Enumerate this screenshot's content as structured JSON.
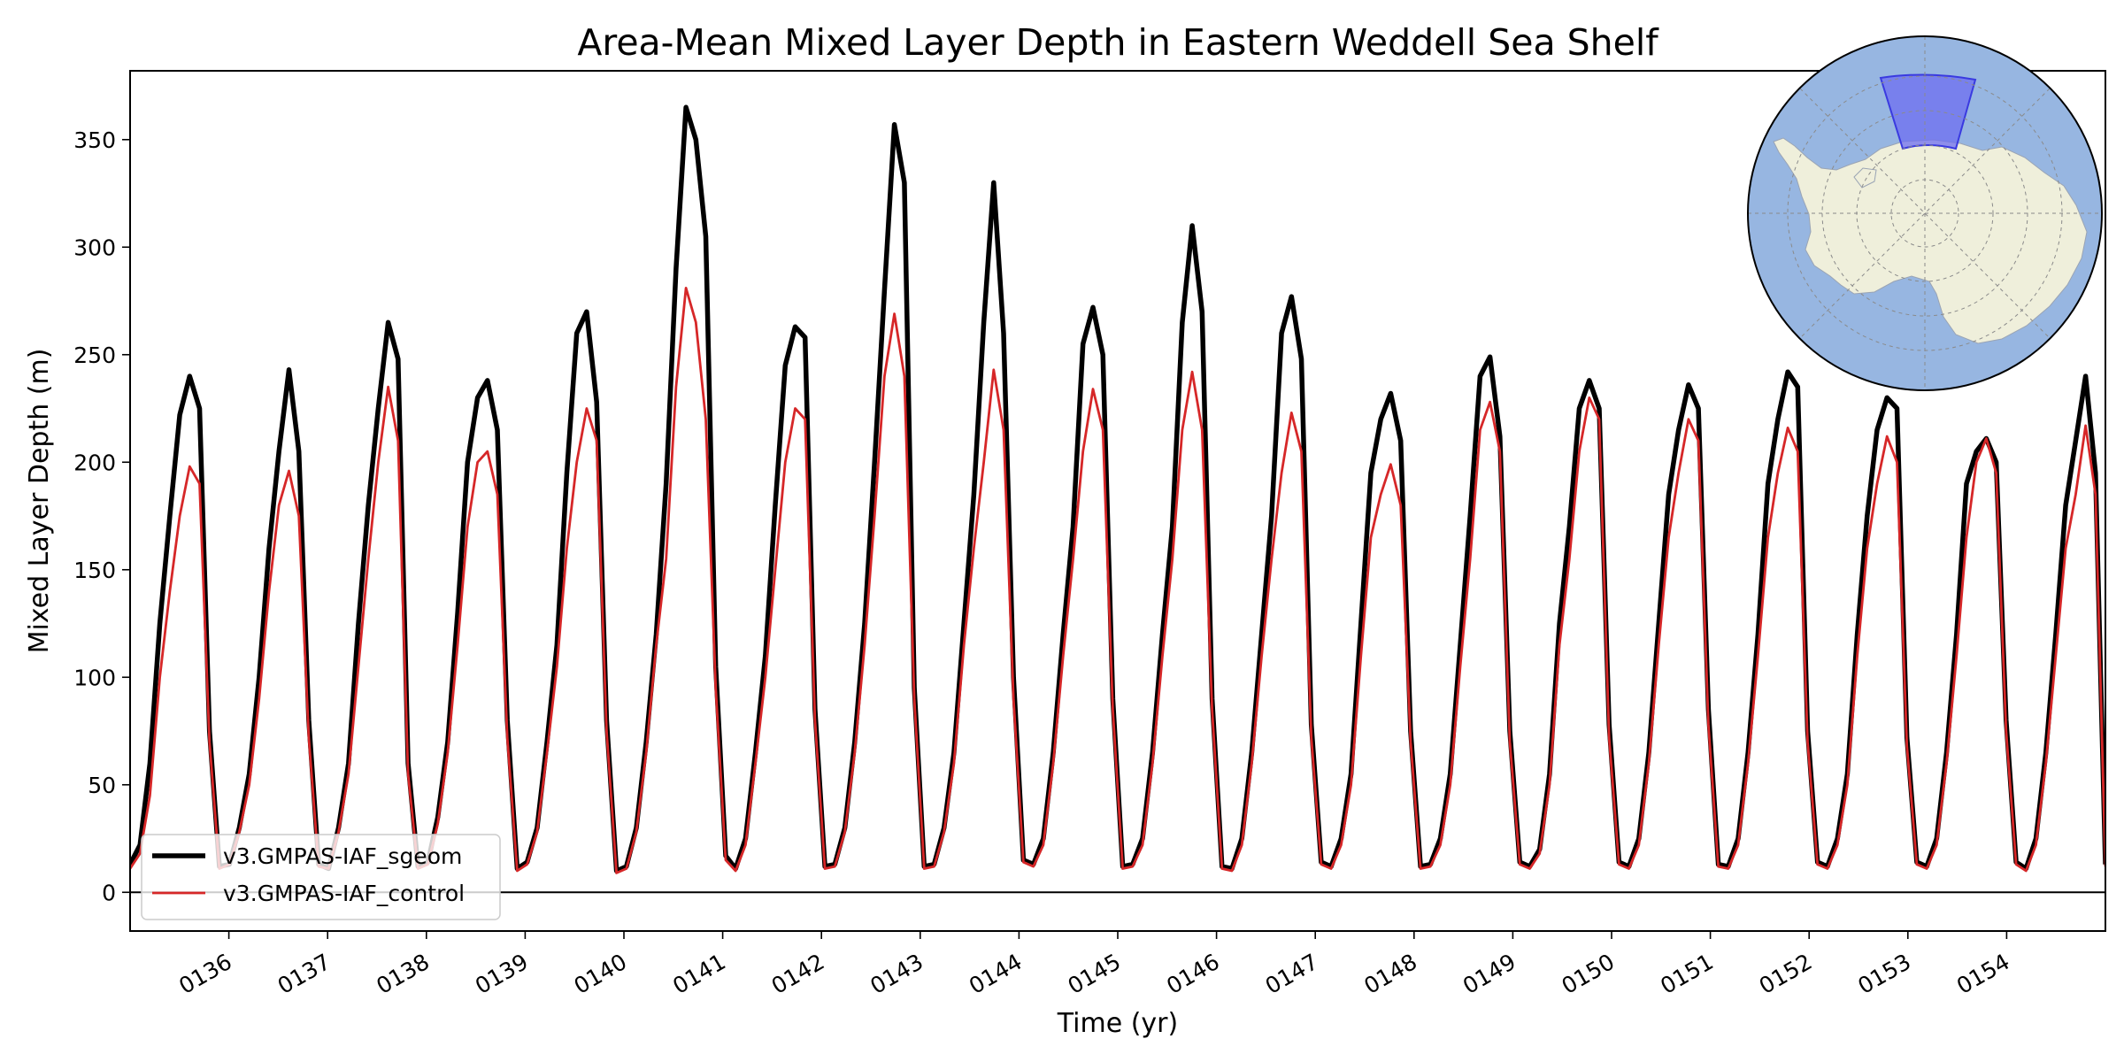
{
  "chart_data": {
    "type": "line",
    "title": "Area-Mean Mixed Layer Depth in Eastern Weddell Sea Shelf",
    "xlabel": "Time (yr)",
    "ylabel": "Mixed Layer Depth (m)",
    "xlim": [
      135.0,
      155.0
    ],
    "ylim": [
      -18,
      382
    ],
    "x_ticks": [
      136,
      137,
      138,
      139,
      140,
      141,
      142,
      143,
      144,
      145,
      146,
      147,
      148,
      149,
      150,
      151,
      152,
      153,
      154
    ],
    "x_tick_labels": [
      "0136",
      "0137",
      "0138",
      "0139",
      "0140",
      "0141",
      "0142",
      "0143",
      "0144",
      "0145",
      "0146",
      "0147",
      "0148",
      "0149",
      "0150",
      "0151",
      "0152",
      "0153",
      "0154"
    ],
    "y_ticks": [
      0,
      50,
      100,
      150,
      200,
      250,
      300,
      350
    ],
    "y_tick_labels": [
      "0",
      "50",
      "100",
      "150",
      "200",
      "250",
      "300",
      "350"
    ],
    "grid": false,
    "hline": 0,
    "legend_position": "lower-left",
    "inset_map": "south-polar-map",
    "colors": {
      "sgeom": "#000000",
      "control": "#d62728",
      "ocean": "#97b6e1",
      "land": "#efefdb",
      "region": "#6e6ef0"
    },
    "series": [
      {
        "name": "v3.GMPAS-IAF_sgeom",
        "color": "#000000",
        "values": [
          13,
          22,
          60,
          125,
          175,
          222,
          240,
          225,
          75,
          12,
          13,
          30,
          55,
          100,
          160,
          205,
          243,
          205,
          80,
          13,
          11,
          30,
          60,
          125,
          180,
          225,
          265,
          248,
          60,
          12,
          14,
          35,
          70,
          130,
          200,
          230,
          238,
          215,
          80,
          11,
          14,
          30,
          70,
          115,
          195,
          260,
          270,
          228,
          80,
          10,
          12,
          30,
          70,
          120,
          190,
          290,
          365,
          350,
          305,
          105,
          17,
          11,
          25,
          65,
          110,
          180,
          245,
          263,
          258,
          85,
          12,
          13,
          30,
          70,
          125,
          200,
          280,
          357,
          330,
          95,
          12,
          13,
          30,
          65,
          125,
          185,
          265,
          330,
          260,
          100,
          15,
          13,
          25,
          65,
          120,
          170,
          255,
          272,
          250,
          90,
          12,
          13,
          25,
          65,
          120,
          170,
          265,
          310,
          270,
          90,
          12,
          11,
          25,
          65,
          120,
          175,
          260,
          277,
          248,
          78,
          14,
          12,
          25,
          55,
          125,
          195,
          220,
          232,
          210,
          75,
          12,
          13,
          25,
          55,
          115,
          175,
          240,
          249,
          212,
          75,
          14,
          12,
          20,
          55,
          125,
          170,
          225,
          238,
          225,
          78,
          14,
          12,
          25,
          65,
          125,
          185,
          215,
          236,
          225,
          85,
          13,
          12,
          25,
          65,
          120,
          190,
          220,
          242,
          235,
          75,
          14,
          12,
          25,
          55,
          120,
          175,
          215,
          230,
          225,
          72,
          14,
          12,
          25,
          65,
          120,
          190,
          205,
          211,
          200,
          80,
          14,
          11,
          25,
          65,
          120,
          180,
          210,
          240,
          195,
          13
        ]
      },
      {
        "name": "v3.GMPAS-IAF_control",
        "color": "#d62728",
        "values": [
          11,
          18,
          45,
          100,
          140,
          175,
          198,
          190,
          70,
          11,
          13,
          28,
          50,
          90,
          140,
          180,
          196,
          175,
          72,
          12,
          11,
          28,
          55,
          105,
          155,
          200,
          235,
          210,
          55,
          11,
          13,
          32,
          65,
          115,
          170,
          200,
          205,
          185,
          72,
          10,
          13,
          28,
          65,
          105,
          160,
          200,
          225,
          210,
          75,
          9,
          11,
          28,
          65,
          115,
          155,
          235,
          281,
          265,
          220,
          95,
          15,
          10,
          22,
          60,
          100,
          150,
          200,
          225,
          220,
          80,
          11,
          12,
          28,
          65,
          115,
          175,
          240,
          269,
          240,
          90,
          11,
          12,
          28,
          60,
          115,
          160,
          200,
          243,
          215,
          90,
          14,
          12,
          22,
          60,
          110,
          155,
          205,
          234,
          215,
          85,
          11,
          12,
          22,
          60,
          110,
          155,
          215,
          242,
          215,
          85,
          11,
          10,
          22,
          60,
          110,
          155,
          195,
          223,
          205,
          72,
          13,
          11,
          22,
          50,
          110,
          165,
          185,
          199,
          180,
          70,
          11,
          12,
          22,
          50,
          105,
          155,
          215,
          228,
          205,
          70,
          13,
          11,
          18,
          50,
          115,
          155,
          205,
          230,
          220,
          72,
          13,
          11,
          22,
          60,
          115,
          165,
          195,
          220,
          210,
          78,
          12,
          11,
          22,
          60,
          110,
          165,
          195,
          216,
          205,
          70,
          13,
          11,
          22,
          50,
          110,
          160,
          190,
          212,
          200,
          68,
          13,
          11,
          22,
          60,
          110,
          165,
          200,
          211,
          195,
          75,
          13,
          10,
          22,
          60,
          110,
          160,
          185,
          217,
          185,
          12
        ]
      }
    ]
  },
  "legend": {
    "items": [
      {
        "label": "v3.GMPAS-IAF_sgeom",
        "color": "#000000",
        "width": 5.5
      },
      {
        "label": "v3.GMPAS-IAF_control",
        "color": "#d62728",
        "width": 2.8
      }
    ]
  }
}
